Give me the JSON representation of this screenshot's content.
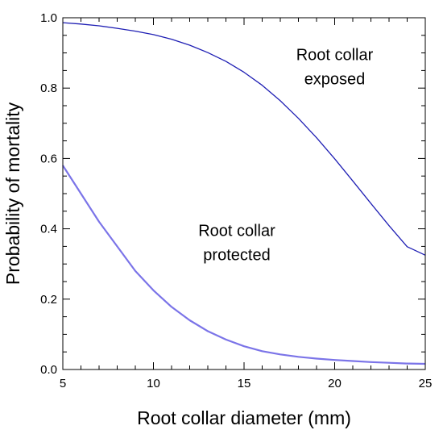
{
  "chart_data": {
    "type": "line",
    "xlabel": "Root collar diameter (mm)",
    "ylabel": "Probability of mortality",
    "xlim": [
      5,
      25
    ],
    "ylim": [
      0,
      1.0
    ],
    "x_ticks": [
      "5",
      "10",
      "15",
      "20",
      "25"
    ],
    "y_ticks": [
      "0.0",
      "0.2",
      "0.4",
      "0.6",
      "0.8",
      "1.0"
    ],
    "x_minor_step": 1,
    "y_minor_step": 0.05,
    "grid": false,
    "series": [
      {
        "color": "#1f1fb4",
        "x": [
          5,
          6,
          7,
          8,
          9,
          10,
          11,
          12,
          13,
          14,
          15,
          16,
          17,
          18,
          19,
          20,
          21,
          22,
          23,
          24,
          25
        ],
        "y": [
          0.986,
          0.982,
          0.977,
          0.97,
          0.962,
          0.952,
          0.939,
          0.922,
          0.901,
          0.876,
          0.845,
          0.808,
          0.764,
          0.714,
          0.659,
          0.599,
          0.536,
          0.472,
          0.409,
          0.349,
          0.325
        ]
      },
      {
        "color": "#7b74e8",
        "x": [
          5,
          6,
          7,
          8,
          9,
          10,
          11,
          12,
          13,
          14,
          15,
          16,
          17,
          18,
          19,
          20,
          21,
          22,
          23,
          24,
          25
        ],
        "y": [
          0.58,
          0.5,
          0.42,
          0.35,
          0.28,
          0.225,
          0.178,
          0.14,
          0.109,
          0.085,
          0.066,
          0.052,
          0.043,
          0.036,
          0.031,
          0.027,
          0.024,
          0.021,
          0.019,
          0.017,
          0.016
        ]
      }
    ],
    "annotations": [
      {
        "lines": [
          "Root collar",
          "exposed"
        ],
        "x": 20.0,
        "y": 0.88
      },
      {
        "lines": [
          "Root collar",
          "protected"
        ],
        "x": 14.6,
        "y": 0.38
      }
    ]
  }
}
